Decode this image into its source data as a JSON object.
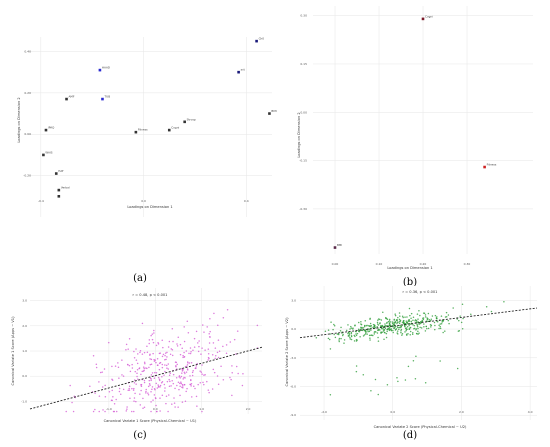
{
  "chart_data": [
    {
      "type": "scatter",
      "panel": "(a)",
      "xlabel": "Loadings on Dimension 1",
      "ylabel": "Loadings on Dimension 2",
      "xlim": [
        -0.45,
        0.5
      ],
      "ylim": [
        -0.4,
        0.47
      ],
      "xticks": [
        "-0.4",
        "0.0",
        "0.4"
      ],
      "yticks": [
        "0.40",
        "0.20",
        "0.00",
        "-0.20"
      ],
      "grid": true,
      "points": [
        {
          "x": 0.44,
          "y": 0.45,
          "label": "Ch0",
          "color": "#1a1a7a"
        },
        {
          "x": 0.37,
          "y": 0.3,
          "label": "sct",
          "color": "#1a1a7a"
        },
        {
          "x": 0.49,
          "y": 0.1,
          "label": "BMI",
          "color": "#333333"
        },
        {
          "x": -0.17,
          "y": 0.31,
          "label": "HAAD",
          "color": "#2a2ad0"
        },
        {
          "x": -0.3,
          "y": 0.17,
          "label": "AMF",
          "color": "#333333"
        },
        {
          "x": -0.16,
          "y": 0.17,
          "label": "TUB",
          "color": "#2a2ad0"
        },
        {
          "x": -0.38,
          "y": 0.02,
          "label": "IPAQ",
          "color": "#333333"
        },
        {
          "x": -0.03,
          "y": 0.01,
          "label": "Fitness",
          "color": "#333333"
        },
        {
          "x": 0.1,
          "y": 0.02,
          "label": "Cogni",
          "color": "#333333"
        },
        {
          "x": 0.16,
          "y": 0.06,
          "label": "Stroop",
          "color": "#333333"
        },
        {
          "x": -0.39,
          "y": -0.1,
          "label": "WAIS",
          "color": "#333333"
        },
        {
          "x": -0.34,
          "y": -0.19,
          "label": "HAT",
          "color": "#333333"
        },
        {
          "x": -0.33,
          "y": -0.27,
          "label": "Verbal",
          "color": "#333333"
        },
        {
          "x": -0.33,
          "y": -0.3,
          "label": "",
          "color": "#333333"
        }
      ]
    },
    {
      "type": "scatter",
      "panel": "(b)",
      "xlabel": "Loadings on Dimension 1",
      "ylabel": "Loadings on Dimension 2",
      "xlim": [
        -0.05,
        0.45
      ],
      "ylim": [
        -0.44,
        0.33
      ],
      "xticks": [
        "0.00",
        "0.10",
        "0.20",
        "0.30"
      ],
      "yticks": [
        "0.30",
        "0.15",
        "0.00",
        "-0.15",
        "-0.30"
      ],
      "grid": true,
      "points": [
        {
          "x": 0.2,
          "y": 0.29,
          "label": "Cogni",
          "color": "#7a1a2a"
        },
        {
          "x": 0.34,
          "y": -0.17,
          "label": "Fitness",
          "color": "#cc2222"
        },
        {
          "x": 0.0,
          "y": -0.42,
          "label": "BMI",
          "color": "#5a2a4a"
        }
      ]
    },
    {
      "type": "scatter",
      "panel": "(c)",
      "annotation": "r = 0.48, p < 0.001",
      "xlabel": "Canonical Variate 1 Score (Physical-Chemical ~ U1)",
      "ylabel": "Canonical Variate 1 Score (Apps ~ V1)",
      "xlim": [
        -2.7,
        2.3
      ],
      "ylim": [
        -1.5,
        3.5
      ],
      "xticks": [
        "-1.0",
        "0.0",
        "1.0",
        "2.0"
      ],
      "yticks": [
        "-1.0",
        "0.0",
        "1.0",
        "2.0",
        "3.0"
      ],
      "grid": true,
      "point_color": "#d55ad5",
      "trend": {
        "x": [
          -2.7,
          2.3
        ],
        "y": [
          -1.3,
          1.15
        ]
      }
    },
    {
      "type": "scatter",
      "panel": "(d)",
      "annotation": "r = 0.36, p < 0.001",
      "xlabel": "Canonical Variate 2 Score (Physical-Chemical ~ U2)",
      "ylabel": "Canonical Variate 2 Score (Apps ~ V2)",
      "xlim": [
        -2.7,
        4.2
      ],
      "ylim": [
        -9.5,
        4.5
      ],
      "xticks": [
        "-2.0",
        "0.0",
        "2.0",
        "4.0"
      ],
      "yticks": [
        "3.0",
        "0.0",
        "-3.0",
        "-6.0",
        "-9.0"
      ],
      "grid": true,
      "point_color": "#2f9e3a",
      "trend": {
        "x": [
          -2.7,
          4.2
        ],
        "y": [
          -0.9,
          2.2
        ]
      }
    }
  ]
}
